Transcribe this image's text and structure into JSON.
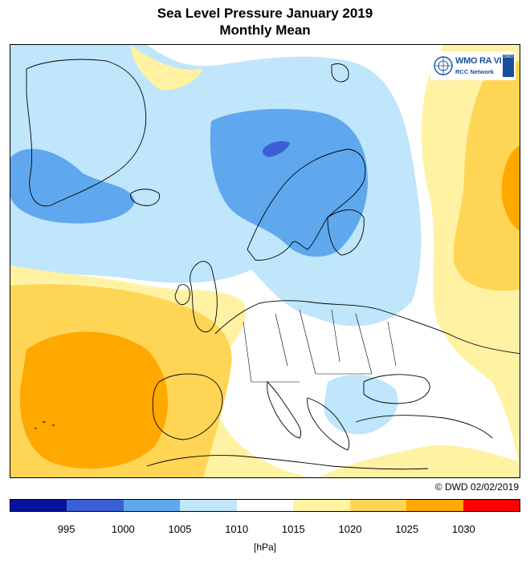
{
  "title": {
    "line1": "Sea Level Pressure January 2019",
    "line2": "Monthly Mean"
  },
  "logo": {
    "name": "WMO RA VI",
    "subtitle": "RCC Network",
    "badge": "DWD"
  },
  "copyright": "© DWD 02/02/2019",
  "legend": {
    "unit": "[hPa]",
    "ticks": [
      "995",
      "1000",
      "1005",
      "1010",
      "1015",
      "1020",
      "1025",
      "1030"
    ],
    "colors": [
      "#08129c",
      "#3a5fd6",
      "#5fa8ee",
      "#bfe6fb",
      "#ffffff",
      "#fff2a3",
      "#ffd555",
      "#ffa800",
      "#ff0000"
    ]
  },
  "map": {
    "region": "Europe and North Atlantic",
    "field": "mean sea level pressure",
    "colors": {
      "low_deep": "#3a5fd6",
      "low": "#5fa8ee",
      "low_light": "#bfe6fb",
      "neutral": "#ffffff",
      "high_light": "#fff2a3",
      "high": "#ffd555",
      "high_strong": "#ffa800",
      "coastline": "#000000"
    }
  }
}
